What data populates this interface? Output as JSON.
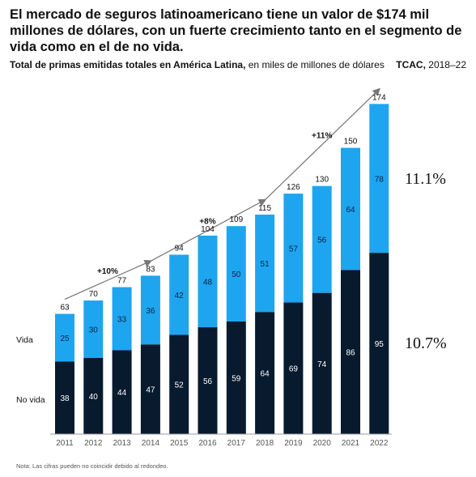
{
  "headline": "El mercado de seguros latinoamericano tiene un valor de $174 mil millones de dólares, con un fuerte crecimiento tanto en el segmento de vida como en el de no vida.",
  "subtitle_bold": "Total de primas emitidas totales en América Latina,",
  "subtitle_rest": " en miles de millones de dólares",
  "cagr_label_bold": "TCAC,",
  "cagr_label_rest": " 2018–22",
  "note": "Nota: Las cifras pueden no coincidir debido al redondeo.",
  "colors": {
    "vida": "#1ea5f0",
    "no_vida": "#071a2e"
  },
  "chart_data": {
    "type": "bar",
    "stacked": true,
    "categories": [
      "2011",
      "2012",
      "2013",
      "2014",
      "2015",
      "2016",
      "2017",
      "2018",
      "2019",
      "2020",
      "2021",
      "2022"
    ],
    "series": [
      {
        "name": "No vida",
        "values": [
          38,
          40,
          44,
          47,
          52,
          56,
          59,
          64,
          69,
          74,
          86,
          95
        ]
      },
      {
        "name": "Vida",
        "values": [
          25,
          30,
          33,
          36,
          42,
          48,
          50,
          51,
          57,
          56,
          64,
          78
        ]
      }
    ],
    "totals": [
      63,
      70,
      77,
      83,
      94,
      104,
      109,
      115,
      126,
      130,
      150,
      174
    ],
    "growth_annotations": [
      {
        "label": "+10%",
        "from": "2011",
        "to": "2014"
      },
      {
        "label": "+8%",
        "from": "2014",
        "to": "2018"
      },
      {
        "label": "+11%",
        "from": "2018",
        "to": "2022"
      }
    ],
    "cagr": {
      "Vida": "11.1%",
      "No vida": "10.7%"
    },
    "ylim": [
      0,
      174
    ]
  }
}
